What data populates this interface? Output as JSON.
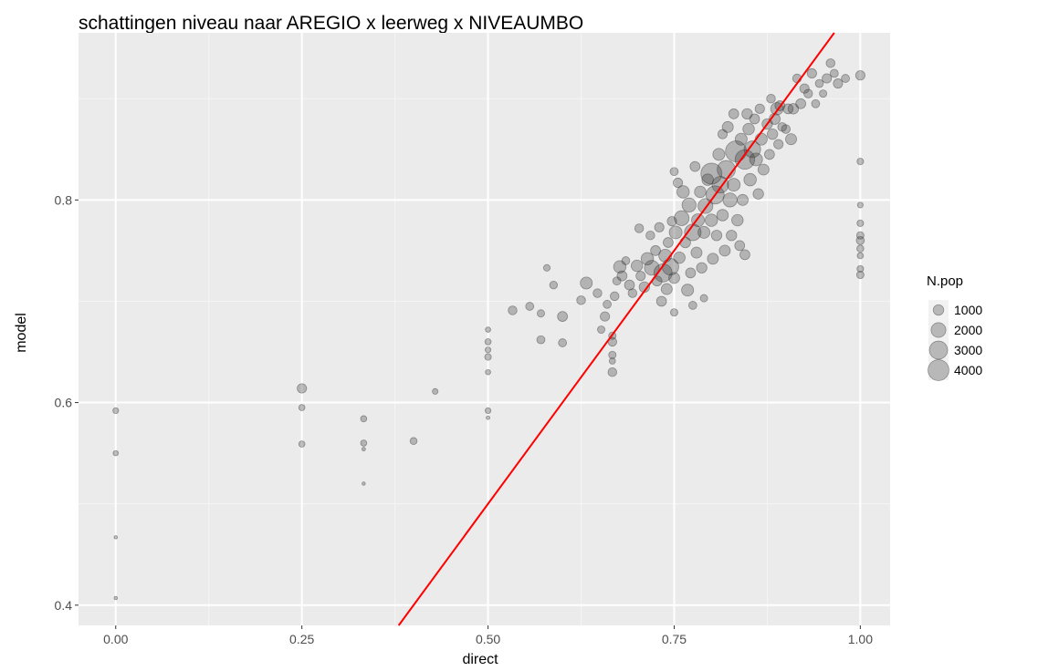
{
  "chart_data": {
    "type": "scatter",
    "title": "schattingen niveau naar AREGIO x leerweg x NIVEAUMBO",
    "xlabel": "direct",
    "ylabel": "model",
    "xlim": [
      -0.05,
      1.04
    ],
    "ylim": [
      0.38,
      0.965
    ],
    "x_ticks": [
      0.0,
      0.25,
      0.5,
      0.75,
      1.0
    ],
    "x_tick_labels": [
      "0.00",
      "0.25",
      "0.50",
      "0.75",
      "1.00"
    ],
    "y_ticks": [
      0.4,
      0.6,
      0.8
    ],
    "y_tick_labels": [
      "0.4",
      "0.6",
      "0.8"
    ],
    "grid": true,
    "reference_line": {
      "intercept": 0,
      "slope": 1,
      "color": "#ff0000"
    },
    "point_color": "#333333",
    "legend": {
      "title": "N.pop",
      "placement": "right",
      "entries": [
        {
          "label": "1000",
          "size": 1000
        },
        {
          "label": "2000",
          "size": 2000
        },
        {
          "label": "3000",
          "size": 3000
        },
        {
          "label": "4000",
          "size": 4000
        }
      ]
    },
    "points": [
      {
        "x": 0.0,
        "y": 0.592,
        "n": 300
      },
      {
        "x": 0.0,
        "y": 0.55,
        "n": 250
      },
      {
        "x": 0.0,
        "y": 0.467,
        "n": 100
      },
      {
        "x": 0.0,
        "y": 0.407,
        "n": 100
      },
      {
        "x": 0.25,
        "y": 0.614,
        "n": 800
      },
      {
        "x": 0.25,
        "y": 0.595,
        "n": 350
      },
      {
        "x": 0.25,
        "y": 0.559,
        "n": 350
      },
      {
        "x": 0.333,
        "y": 0.584,
        "n": 350
      },
      {
        "x": 0.333,
        "y": 0.56,
        "n": 350
      },
      {
        "x": 0.333,
        "y": 0.554,
        "n": 120
      },
      {
        "x": 0.333,
        "y": 0.52,
        "n": 100
      },
      {
        "x": 0.4,
        "y": 0.562,
        "n": 450
      },
      {
        "x": 0.429,
        "y": 0.611,
        "n": 300
      },
      {
        "x": 0.5,
        "y": 0.672,
        "n": 250
      },
      {
        "x": 0.5,
        "y": 0.66,
        "n": 350
      },
      {
        "x": 0.5,
        "y": 0.652,
        "n": 300
      },
      {
        "x": 0.5,
        "y": 0.645,
        "n": 400
      },
      {
        "x": 0.5,
        "y": 0.63,
        "n": 250
      },
      {
        "x": 0.5,
        "y": 0.592,
        "n": 300
      },
      {
        "x": 0.5,
        "y": 0.585,
        "n": 120
      },
      {
        "x": 0.533,
        "y": 0.691,
        "n": 700
      },
      {
        "x": 0.556,
        "y": 0.695,
        "n": 600
      },
      {
        "x": 0.571,
        "y": 0.662,
        "n": 600
      },
      {
        "x": 0.571,
        "y": 0.688,
        "n": 500
      },
      {
        "x": 0.579,
        "y": 0.733,
        "n": 400
      },
      {
        "x": 0.588,
        "y": 0.716,
        "n": 550
      },
      {
        "x": 0.6,
        "y": 0.685,
        "n": 900
      },
      {
        "x": 0.6,
        "y": 0.659,
        "n": 600
      },
      {
        "x": 0.625,
        "y": 0.701,
        "n": 700
      },
      {
        "x": 0.632,
        "y": 0.718,
        "n": 1300
      },
      {
        "x": 0.647,
        "y": 0.708,
        "n": 700
      },
      {
        "x": 0.652,
        "y": 0.672,
        "n": 500
      },
      {
        "x": 0.657,
        "y": 0.685,
        "n": 800
      },
      {
        "x": 0.66,
        "y": 0.697,
        "n": 600
      },
      {
        "x": 0.667,
        "y": 0.66,
        "n": 700
      },
      {
        "x": 0.667,
        "y": 0.666,
        "n": 500
      },
      {
        "x": 0.667,
        "y": 0.647,
        "n": 500
      },
      {
        "x": 0.667,
        "y": 0.641,
        "n": 350
      },
      {
        "x": 0.667,
        "y": 0.63,
        "n": 700
      },
      {
        "x": 0.67,
        "y": 0.705,
        "n": 700
      },
      {
        "x": 0.673,
        "y": 0.72,
        "n": 600
      },
      {
        "x": 0.677,
        "y": 0.734,
        "n": 1400
      },
      {
        "x": 0.68,
        "y": 0.725,
        "n": 900
      },
      {
        "x": 0.685,
        "y": 0.74,
        "n": 600
      },
      {
        "x": 0.69,
        "y": 0.716,
        "n": 900
      },
      {
        "x": 0.694,
        "y": 0.708,
        "n": 700
      },
      {
        "x": 0.7,
        "y": 0.735,
        "n": 1200
      },
      {
        "x": 0.703,
        "y": 0.772,
        "n": 700
      },
      {
        "x": 0.705,
        "y": 0.725,
        "n": 800
      },
      {
        "x": 0.71,
        "y": 0.714,
        "n": 1000
      },
      {
        "x": 0.714,
        "y": 0.742,
        "n": 1400
      },
      {
        "x": 0.718,
        "y": 0.765,
        "n": 700
      },
      {
        "x": 0.72,
        "y": 0.733,
        "n": 2000
      },
      {
        "x": 0.725,
        "y": 0.75,
        "n": 900
      },
      {
        "x": 0.727,
        "y": 0.72,
        "n": 900
      },
      {
        "x": 0.73,
        "y": 0.773,
        "n": 800
      },
      {
        "x": 0.733,
        "y": 0.7,
        "n": 900
      },
      {
        "x": 0.735,
        "y": 0.728,
        "n": 3000
      },
      {
        "x": 0.738,
        "y": 0.745,
        "n": 1500
      },
      {
        "x": 0.74,
        "y": 0.712,
        "n": 1100
      },
      {
        "x": 0.742,
        "y": 0.758,
        "n": 900
      },
      {
        "x": 0.745,
        "y": 0.734,
        "n": 2500
      },
      {
        "x": 0.747,
        "y": 0.779,
        "n": 800
      },
      {
        "x": 0.75,
        "y": 0.723,
        "n": 1100
      },
      {
        "x": 0.75,
        "y": 0.689,
        "n": 500
      },
      {
        "x": 0.75,
        "y": 0.828,
        "n": 600
      },
      {
        "x": 0.752,
        "y": 0.768,
        "n": 1500
      },
      {
        "x": 0.755,
        "y": 0.817,
        "n": 800
      },
      {
        "x": 0.757,
        "y": 0.743,
        "n": 1200
      },
      {
        "x": 0.76,
        "y": 0.782,
        "n": 2000
      },
      {
        "x": 0.762,
        "y": 0.808,
        "n": 1400
      },
      {
        "x": 0.765,
        "y": 0.758,
        "n": 1000
      },
      {
        "x": 0.768,
        "y": 0.711,
        "n": 1300
      },
      {
        "x": 0.77,
        "y": 0.795,
        "n": 1800
      },
      {
        "x": 0.772,
        "y": 0.728,
        "n": 900
      },
      {
        "x": 0.775,
        "y": 0.768,
        "n": 2500
      },
      {
        "x": 0.775,
        "y": 0.696,
        "n": 600
      },
      {
        "x": 0.778,
        "y": 0.833,
        "n": 900
      },
      {
        "x": 0.78,
        "y": 0.748,
        "n": 1100
      },
      {
        "x": 0.782,
        "y": 0.78,
        "n": 1500
      },
      {
        "x": 0.785,
        "y": 0.808,
        "n": 1200
      },
      {
        "x": 0.787,
        "y": 0.733,
        "n": 1000
      },
      {
        "x": 0.79,
        "y": 0.768,
        "n": 1300
      },
      {
        "x": 0.79,
        "y": 0.703,
        "n": 500
      },
      {
        "x": 0.792,
        "y": 0.794,
        "n": 2000
      },
      {
        "x": 0.795,
        "y": 0.82,
        "n": 1200
      },
      {
        "x": 0.8,
        "y": 0.826,
        "n": 4000
      },
      {
        "x": 0.8,
        "y": 0.78,
        "n": 1400
      },
      {
        "x": 0.802,
        "y": 0.742,
        "n": 1100
      },
      {
        "x": 0.805,
        "y": 0.805,
        "n": 3000
      },
      {
        "x": 0.807,
        "y": 0.765,
        "n": 1000
      },
      {
        "x": 0.81,
        "y": 0.845,
        "n": 1300
      },
      {
        "x": 0.812,
        "y": 0.815,
        "n": 2500
      },
      {
        "x": 0.815,
        "y": 0.785,
        "n": 1200
      },
      {
        "x": 0.815,
        "y": 0.865,
        "n": 800
      },
      {
        "x": 0.818,
        "y": 0.75,
        "n": 1100
      },
      {
        "x": 0.82,
        "y": 0.83,
        "n": 3000
      },
      {
        "x": 0.822,
        "y": 0.872,
        "n": 1100
      },
      {
        "x": 0.825,
        "y": 0.8,
        "n": 1800
      },
      {
        "x": 0.827,
        "y": 0.765,
        "n": 1000
      },
      {
        "x": 0.83,
        "y": 0.815,
        "n": 1500
      },
      {
        "x": 0.83,
        "y": 0.885,
        "n": 900
      },
      {
        "x": 0.833,
        "y": 0.848,
        "n": 4000
      },
      {
        "x": 0.835,
        "y": 0.78,
        "n": 1200
      },
      {
        "x": 0.838,
        "y": 0.755,
        "n": 900
      },
      {
        "x": 0.84,
        "y": 0.86,
        "n": 1300
      },
      {
        "x": 0.842,
        "y": 0.8,
        "n": 1100
      },
      {
        "x": 0.845,
        "y": 0.84,
        "n": 3500
      },
      {
        "x": 0.845,
        "y": 0.746,
        "n": 900
      },
      {
        "x": 0.848,
        "y": 0.885,
        "n": 1000
      },
      {
        "x": 0.85,
        "y": 0.87,
        "n": 1200
      },
      {
        "x": 0.852,
        "y": 0.82,
        "n": 1400
      },
      {
        "x": 0.855,
        "y": 0.85,
        "n": 2500
      },
      {
        "x": 0.858,
        "y": 0.88,
        "n": 900
      },
      {
        "x": 0.86,
        "y": 0.84,
        "n": 1500
      },
      {
        "x": 0.863,
        "y": 0.806,
        "n": 1000
      },
      {
        "x": 0.865,
        "y": 0.89,
        "n": 800
      },
      {
        "x": 0.867,
        "y": 0.86,
        "n": 1300
      },
      {
        "x": 0.87,
        "y": 0.83,
        "n": 1100
      },
      {
        "x": 0.875,
        "y": 0.875,
        "n": 1000
      },
      {
        "x": 0.878,
        "y": 0.845,
        "n": 900
      },
      {
        "x": 0.88,
        "y": 0.9,
        "n": 700
      },
      {
        "x": 0.882,
        "y": 0.865,
        "n": 1000
      },
      {
        "x": 0.885,
        "y": 0.88,
        "n": 1100
      },
      {
        "x": 0.888,
        "y": 0.89,
        "n": 1400
      },
      {
        "x": 0.89,
        "y": 0.855,
        "n": 800
      },
      {
        "x": 0.892,
        "y": 0.893,
        "n": 900
      },
      {
        "x": 0.895,
        "y": 0.872,
        "n": 700
      },
      {
        "x": 0.9,
        "y": 0.87,
        "n": 700
      },
      {
        "x": 0.903,
        "y": 0.89,
        "n": 900
      },
      {
        "x": 0.907,
        "y": 0.86,
        "n": 1100
      },
      {
        "x": 0.91,
        "y": 0.89,
        "n": 1000
      },
      {
        "x": 0.915,
        "y": 0.92,
        "n": 700
      },
      {
        "x": 0.92,
        "y": 0.895,
        "n": 900
      },
      {
        "x": 0.925,
        "y": 0.91,
        "n": 800
      },
      {
        "x": 0.93,
        "y": 0.905,
        "n": 700
      },
      {
        "x": 0.935,
        "y": 0.925,
        "n": 800
      },
      {
        "x": 0.94,
        "y": 0.895,
        "n": 600
      },
      {
        "x": 0.945,
        "y": 0.915,
        "n": 600
      },
      {
        "x": 0.95,
        "y": 0.905,
        "n": 500
      },
      {
        "x": 0.955,
        "y": 0.92,
        "n": 800
      },
      {
        "x": 0.96,
        "y": 0.935,
        "n": 700
      },
      {
        "x": 0.965,
        "y": 0.925,
        "n": 600
      },
      {
        "x": 0.97,
        "y": 0.915,
        "n": 800
      },
      {
        "x": 0.98,
        "y": 0.92,
        "n": 600
      },
      {
        "x": 1.0,
        "y": 0.923,
        "n": 800
      },
      {
        "x": 1.0,
        "y": 0.838,
        "n": 400
      },
      {
        "x": 1.0,
        "y": 0.795,
        "n": 300
      },
      {
        "x": 1.0,
        "y": 0.777,
        "n": 400
      },
      {
        "x": 1.0,
        "y": 0.765,
        "n": 500
      },
      {
        "x": 1.0,
        "y": 0.76,
        "n": 600
      },
      {
        "x": 1.0,
        "y": 0.752,
        "n": 450
      },
      {
        "x": 1.0,
        "y": 0.745,
        "n": 350
      },
      {
        "x": 1.0,
        "y": 0.732,
        "n": 400
      },
      {
        "x": 1.0,
        "y": 0.726,
        "n": 500
      }
    ]
  }
}
